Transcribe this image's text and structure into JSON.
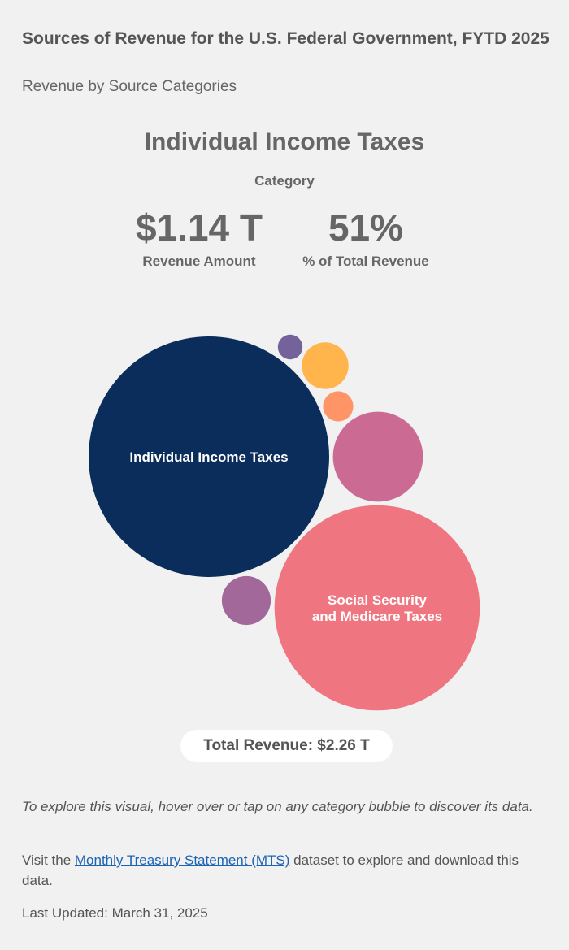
{
  "header": {
    "title": "Sources of Revenue for the U.S. Federal Government, FYTD 2025",
    "subtitle": "Revenue by Source Categories"
  },
  "selected": {
    "name": "Individual Income Taxes",
    "kind_label": "Category",
    "amount": "$1.14 T",
    "amount_label": "Revenue Amount",
    "percent": "51%",
    "percent_label": "% of Total Revenue"
  },
  "total": "Total Revenue: $2.26 T",
  "footer": {
    "note": "To explore this visual, hover over or tap on any category bubble to discover its data.",
    "visit_prefix": "Visit the ",
    "link_text": "Monthly Treasury Statement (MTS)",
    "visit_suffix": " dataset to explore and download this data.",
    "last_updated": "Last Updated: March 31, 2025"
  },
  "chart_data": {
    "type": "bubble",
    "unit": "T",
    "total": 2.26,
    "bubbles": [
      {
        "key": "individual",
        "label": [
          "Individual Income Taxes"
        ],
        "value": 1.14,
        "percent": 51,
        "color": "#0b2d5b"
      },
      {
        "key": "social",
        "label": [
          "Social Security",
          "and Medicare Taxes"
        ],
        "value": 0.83,
        "color": "#ef7680"
      },
      {
        "key": "corporate",
        "label": [],
        "value": 0.16,
        "color": "#cb6b94"
      },
      {
        "key": "misc",
        "label": [],
        "value": 0.047,
        "color": "#a3689a"
      },
      {
        "key": "yellow",
        "label": [],
        "value": 0.043,
        "color": "#ffb44c"
      },
      {
        "key": "orange",
        "label": [],
        "value": 0.018,
        "color": "#ff9466"
      },
      {
        "key": "smallest",
        "label": [],
        "value": 0.012,
        "color": "#74639b"
      }
    ]
  }
}
